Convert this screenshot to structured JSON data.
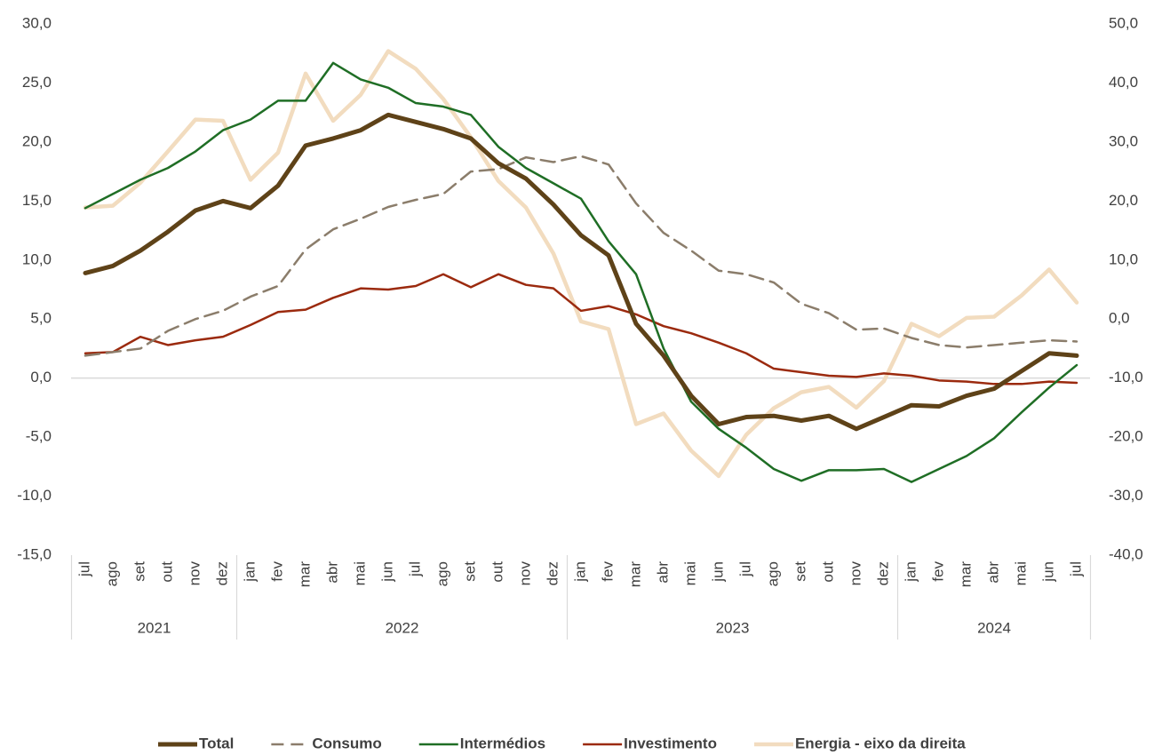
{
  "chart_data": {
    "type": "line",
    "categories": [
      "jul",
      "ago",
      "set",
      "out",
      "nov",
      "dez",
      "jan",
      "fev",
      "mar",
      "abr",
      "mai",
      "jun",
      "jul",
      "ago",
      "set",
      "out",
      "nov",
      "dez",
      "jan",
      "fev",
      "mar",
      "abr",
      "mai",
      "jun",
      "jul",
      "ago",
      "set",
      "out",
      "nov",
      "dez",
      "jan",
      "fev",
      "mar",
      "abr",
      "mai",
      "jun",
      "jul"
    ],
    "years": [
      "2021",
      "2022",
      "2023",
      "2024"
    ],
    "ylim": [
      -15,
      30
    ],
    "yticks": [
      {
        "value": -15,
        "label": "-15,0"
      },
      {
        "value": -10,
        "label": "-10,0"
      },
      {
        "value": -5,
        "label": "-5,0"
      },
      {
        "value": 0,
        "label": "0,0"
      },
      {
        "value": 5,
        "label": "5,0"
      },
      {
        "value": 10,
        "label": "10,0"
      },
      {
        "value": 15,
        "label": "15,0"
      },
      {
        "value": 20,
        "label": "20,0"
      },
      {
        "value": 25,
        "label": "25,0"
      },
      {
        "value": 30,
        "label": "30,0"
      }
    ],
    "y2lim": [
      -40,
      50
    ],
    "y2ticks": [
      {
        "value": -40,
        "label": "-40,0"
      },
      {
        "value": -30,
        "label": "-30,0"
      },
      {
        "value": -20,
        "label": "-20,0"
      },
      {
        "value": -10,
        "label": "-10,0"
      },
      {
        "value": 0,
        "label": "0,0"
      },
      {
        "value": 10,
        "label": "10,0"
      },
      {
        "value": 20,
        "label": "20,0"
      },
      {
        "value": 30,
        "label": "30,0"
      },
      {
        "value": 40,
        "label": "40,0"
      },
      {
        "value": 50,
        "label": "50,0"
      }
    ],
    "legend": "bottom",
    "series": [
      {
        "name": "Total",
        "color": "#5e4218",
        "style": "solid",
        "values": [
          8.9,
          9.5,
          10.8,
          12.4,
          14.2,
          15.0,
          14.4,
          16.3,
          19.7,
          20.3,
          21.0,
          22.3,
          21.7,
          21.1,
          20.3,
          18.2,
          16.9,
          14.7,
          12.1,
          10.4,
          4.6,
          1.9,
          -1.5,
          -3.9,
          -3.3,
          -3.2,
          -3.6,
          -3.2,
          -4.3,
          -3.3,
          -2.3,
          -2.4,
          -1.5,
          -0.9,
          0.6,
          2.1,
          1.9
        ]
      },
      {
        "name": "Consumo",
        "color": "#8b7d6b",
        "style": "dashed",
        "values": [
          1.9,
          2.2,
          2.5,
          4.0,
          5.0,
          5.7,
          6.9,
          7.8,
          10.9,
          12.6,
          13.5,
          14.5,
          15.1,
          15.6,
          17.5,
          17.7,
          18.7,
          18.3,
          18.8,
          18.1,
          14.8,
          12.3,
          10.8,
          9.1,
          8.8,
          8.1,
          6.3,
          5.5,
          4.1,
          4.2,
          3.4,
          2.8,
          2.6,
          2.8,
          3.0,
          3.2,
          3.1
        ]
      },
      {
        "name": "Intermédios",
        "color": "#1f6e25",
        "style": "solid",
        "values": [
          14.4,
          15.6,
          16.8,
          17.8,
          19.2,
          21.0,
          21.9,
          23.5,
          23.5,
          26.7,
          25.3,
          24.6,
          23.3,
          23.0,
          22.3,
          19.6,
          17.8,
          16.5,
          15.2,
          11.6,
          8.8,
          2.5,
          -2.0,
          -4.3,
          -5.9,
          -7.7,
          -8.7,
          -7.8,
          -7.8,
          -7.7,
          -8.8,
          -7.7,
          -6.6,
          -5.1,
          -2.9,
          -0.8,
          1.1
        ]
      },
      {
        "name": "Investimento",
        "color": "#9b2a0e",
        "style": "solid",
        "values": [
          2.1,
          2.2,
          3.5,
          2.8,
          3.2,
          3.5,
          4.5,
          5.6,
          5.8,
          6.8,
          7.6,
          7.5,
          7.8,
          8.8,
          7.7,
          8.8,
          7.9,
          7.6,
          5.7,
          6.1,
          5.4,
          4.4,
          3.8,
          3.0,
          2.1,
          0.8,
          0.5,
          0.2,
          0.1,
          0.4,
          0.2,
          -0.2,
          -0.3,
          -0.5,
          -0.5,
          -0.3,
          -0.4
        ]
      },
      {
        "name": "Energia - eixo da direita",
        "color": "#f2dcbf",
        "style": "solid",
        "axis": "y2",
        "values": [
          18.9,
          19.2,
          23.1,
          28.4,
          33.8,
          33.6,
          23.6,
          28.2,
          41.6,
          33.6,
          38.0,
          45.4,
          42.4,
          37.3,
          30.8,
          23.4,
          18.9,
          11.1,
          -0.4,
          -1.7,
          -17.8,
          -16.0,
          -22.3,
          -26.6,
          -19.6,
          -15.1,
          -12.4,
          -11.5,
          -15.0,
          -10.5,
          -0.8,
          -2.9,
          0.2,
          0.4,
          4.0,
          8.4,
          2.8
        ]
      }
    ]
  }
}
